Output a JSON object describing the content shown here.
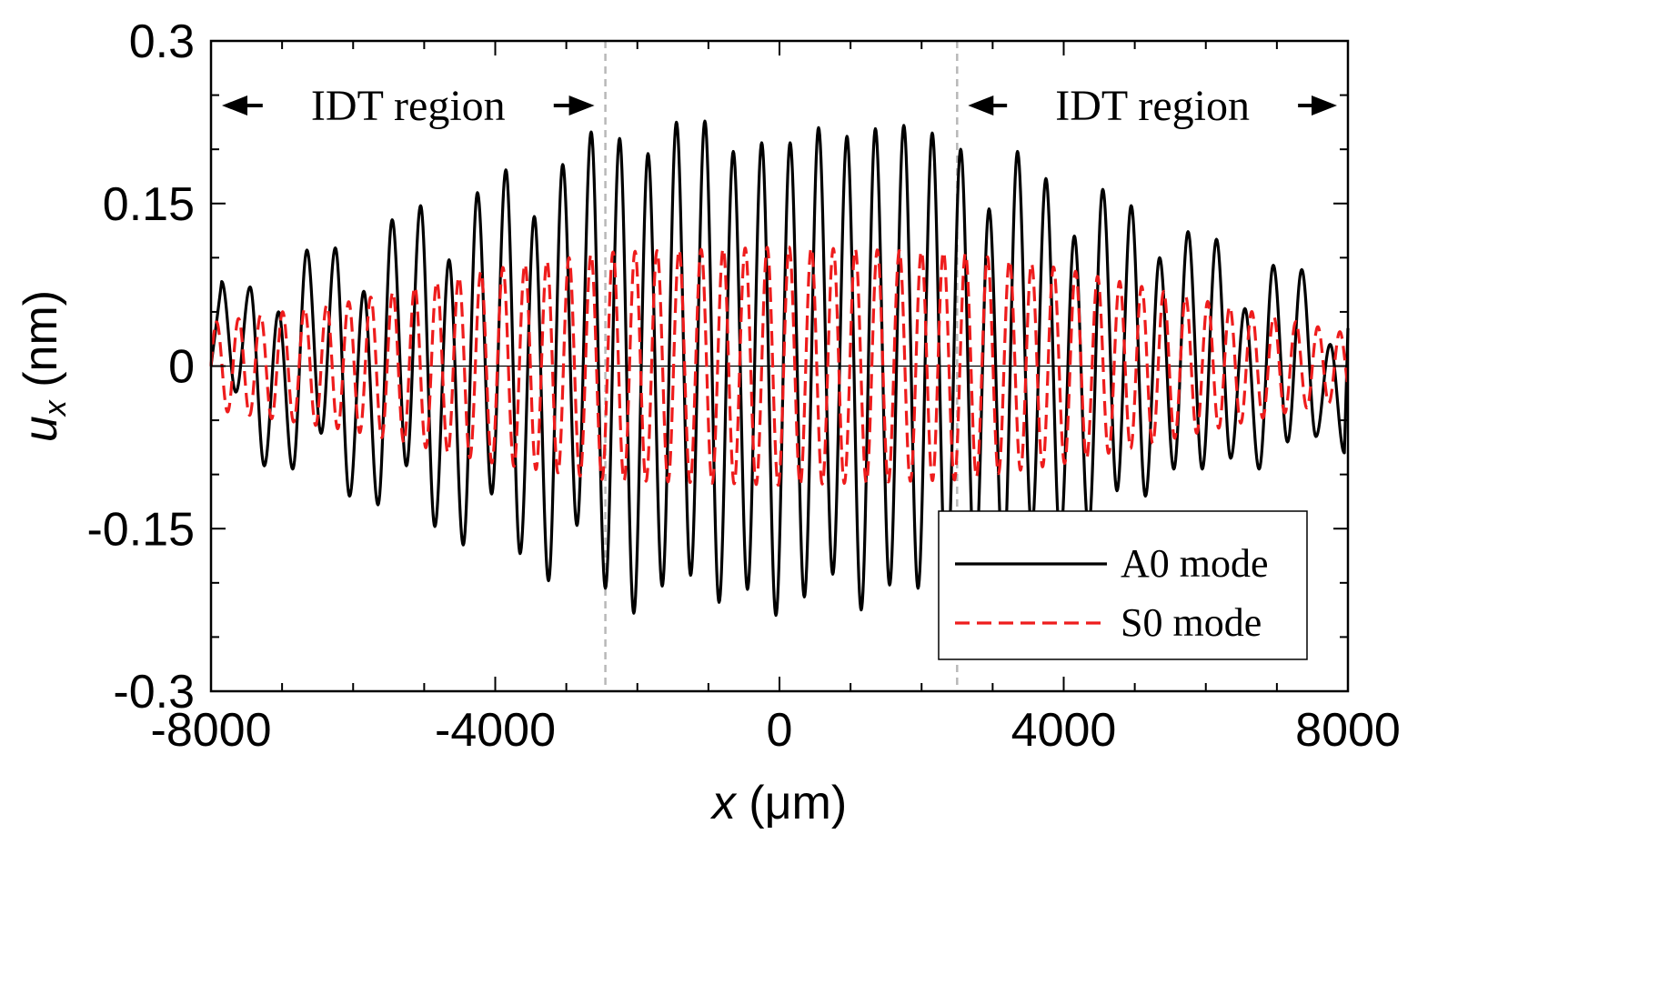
{
  "chart_data": {
    "type": "line",
    "xlabel": {
      "var": "x",
      "unit": " (μm)"
    },
    "ylabel": {
      "var": "u",
      "sub": "x",
      "unit": " (nm)"
    },
    "xlim": [
      -8000,
      8000
    ],
    "ylim": [
      -0.3,
      0.3
    ],
    "x_ticks": [
      -8000,
      -4000,
      0,
      4000,
      8000
    ],
    "x_tick_labels": [
      "-8000",
      "-4000",
      "0",
      "4000",
      "8000"
    ],
    "x_minor_step": 1000,
    "y_ticks": [
      -0.3,
      -0.15,
      0,
      0.15,
      0.3
    ],
    "y_tick_labels": [
      "-0.3",
      "-0.15",
      "0",
      "0.15",
      "0.3"
    ],
    "y_minor_step": 0.05,
    "grid": false,
    "legend_position": "bottom-right",
    "region_boundaries": [
      -2450,
      2500
    ],
    "annotations": [
      {
        "text": "IDT region",
        "x_from": -8000,
        "x_to": -2450
      },
      {
        "text": "IDT region",
        "x_from": 2500,
        "x_to": 8000
      }
    ],
    "series": [
      {
        "name": "A0 mode",
        "color": "#000000",
        "style": "solid",
        "peaks": [
          {
            "x": -7850,
            "y": 0.078
          },
          {
            "x": -7650,
            "y": -0.024
          },
          {
            "x": -7450,
            "y": 0.073
          },
          {
            "x": -7250,
            "y": -0.092
          },
          {
            "x": -7050,
            "y": 0.05
          },
          {
            "x": -6850,
            "y": -0.095
          },
          {
            "x": -6650,
            "y": 0.107
          },
          {
            "x": -6450,
            "y": -0.062
          },
          {
            "x": -6250,
            "y": 0.109
          },
          {
            "x": -6050,
            "y": -0.12
          },
          {
            "x": -5850,
            "y": 0.069
          },
          {
            "x": -5650,
            "y": -0.128
          },
          {
            "x": -5450,
            "y": 0.135
          },
          {
            "x": -5250,
            "y": -0.092
          },
          {
            "x": -5050,
            "y": 0.148
          },
          {
            "x": -4850,
            "y": -0.148
          },
          {
            "x": -4650,
            "y": 0.098
          },
          {
            "x": -4450,
            "y": -0.165
          },
          {
            "x": -4250,
            "y": 0.16
          },
          {
            "x": -4050,
            "y": -0.118
          },
          {
            "x": -3850,
            "y": 0.181
          },
          {
            "x": -3650,
            "y": -0.173
          },
          {
            "x": -3450,
            "y": 0.138
          },
          {
            "x": -3250,
            "y": -0.198
          },
          {
            "x": -3050,
            "y": 0.186
          },
          {
            "x": -2850,
            "y": -0.147
          },
          {
            "x": -2650,
            "y": 0.216
          },
          {
            "x": -2450,
            "y": -0.205
          },
          {
            "x": -2250,
            "y": 0.21
          },
          {
            "x": -2050,
            "y": -0.228
          },
          {
            "x": -1850,
            "y": 0.196
          },
          {
            "x": -1650,
            "y": -0.203
          },
          {
            "x": -1450,
            "y": 0.225
          },
          {
            "x": -1250,
            "y": -0.193
          },
          {
            "x": -1050,
            "y": 0.226
          },
          {
            "x": -850,
            "y": -0.218
          },
          {
            "x": -650,
            "y": 0.198
          },
          {
            "x": -450,
            "y": -0.206
          },
          {
            "x": -250,
            "y": 0.206
          },
          {
            "x": -50,
            "y": -0.23
          },
          {
            "x": 150,
            "y": 0.206
          },
          {
            "x": 350,
            "y": -0.213
          },
          {
            "x": 550,
            "y": 0.22
          },
          {
            "x": 750,
            "y": -0.192
          },
          {
            "x": 950,
            "y": 0.212
          },
          {
            "x": 1150,
            "y": -0.225
          },
          {
            "x": 1350,
            "y": 0.219
          },
          {
            "x": 1550,
            "y": -0.202
          },
          {
            "x": 1750,
            "y": 0.222
          },
          {
            "x": 1950,
            "y": -0.205
          },
          {
            "x": 2150,
            "y": 0.215
          },
          {
            "x": 2350,
            "y": -0.209
          },
          {
            "x": 2550,
            "y": 0.2
          },
          {
            "x": 2750,
            "y": -0.19
          },
          {
            "x": 2950,
            "y": 0.145
          },
          {
            "x": 3150,
            "y": -0.185
          },
          {
            "x": 3350,
            "y": 0.198
          },
          {
            "x": 3550,
            "y": -0.15
          },
          {
            "x": 3750,
            "y": 0.173
          },
          {
            "x": 3950,
            "y": -0.16
          },
          {
            "x": 4150,
            "y": 0.12
          },
          {
            "x": 4350,
            "y": -0.15
          },
          {
            "x": 4550,
            "y": 0.163
          },
          {
            "x": 4750,
            "y": -0.115
          },
          {
            "x": 4950,
            "y": 0.148
          },
          {
            "x": 5150,
            "y": -0.12
          },
          {
            "x": 5350,
            "y": 0.1
          },
          {
            "x": 5550,
            "y": -0.095
          },
          {
            "x": 5750,
            "y": 0.124
          },
          {
            "x": 5950,
            "y": -0.095
          },
          {
            "x": 6150,
            "y": 0.117
          },
          {
            "x": 6350,
            "y": -0.085
          },
          {
            "x": 6550,
            "y": 0.053
          },
          {
            "x": 6750,
            "y": -0.095
          },
          {
            "x": 6950,
            "y": 0.093
          },
          {
            "x": 7150,
            "y": -0.07
          },
          {
            "x": 7350,
            "y": 0.089
          },
          {
            "x": 7550,
            "y": -0.065
          },
          {
            "x": 7750,
            "y": 0.02
          },
          {
            "x": 7950,
            "y": -0.08
          }
        ]
      },
      {
        "name": "S0 mode",
        "color": "#ee1c1c",
        "style": "dashed",
        "amplitude_envelope": [
          {
            "x": -8000,
            "amp": 0.04
          },
          {
            "x": -6000,
            "amp": 0.06
          },
          {
            "x": -4000,
            "amp": 0.09
          },
          {
            "x": -2450,
            "amp": 0.105
          },
          {
            "x": 0,
            "amp": 0.11
          },
          {
            "x": 2500,
            "amp": 0.105
          },
          {
            "x": 4000,
            "amp": 0.09
          },
          {
            "x": 6000,
            "amp": 0.06
          },
          {
            "x": 8000,
            "amp": 0.03
          }
        ],
        "period": 310
      }
    ]
  }
}
